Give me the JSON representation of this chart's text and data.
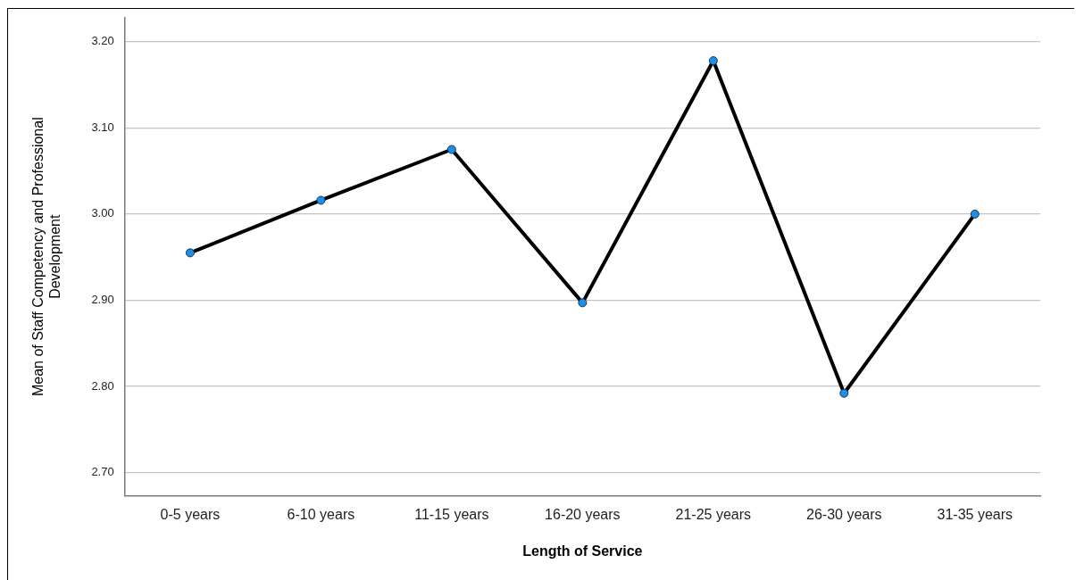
{
  "chart_data": {
    "type": "line",
    "xlabel": "Length of Service",
    "ylabel": "Mean of Staff Competency and Professional Development",
    "categories": [
      "0-5 years",
      "6-10 years",
      "11-15 years",
      "16-20 years",
      "21-25 years",
      "26-30 years",
      "31-35 years"
    ],
    "series": [
      {
        "color": "#000000",
        "values": [
          2.955,
          3.016,
          3.075,
          2.897,
          3.178,
          2.792,
          3.0
        ]
      }
    ],
    "ylim": [
      2.673,
      3.228
    ],
    "yticks": [
      {
        "value": 2.7,
        "label": "2.70"
      },
      {
        "value": 2.8,
        "label": "2.80"
      },
      {
        "value": 2.9,
        "label": "2.90"
      },
      {
        "value": 3.0,
        "label": "3.00"
      },
      {
        "value": 3.1,
        "label": "3.10"
      },
      {
        "value": 3.2,
        "label": "3.20"
      }
    ],
    "grid": "y",
    "marker": "circle",
    "line_style": "solid",
    "legend": false
  }
}
